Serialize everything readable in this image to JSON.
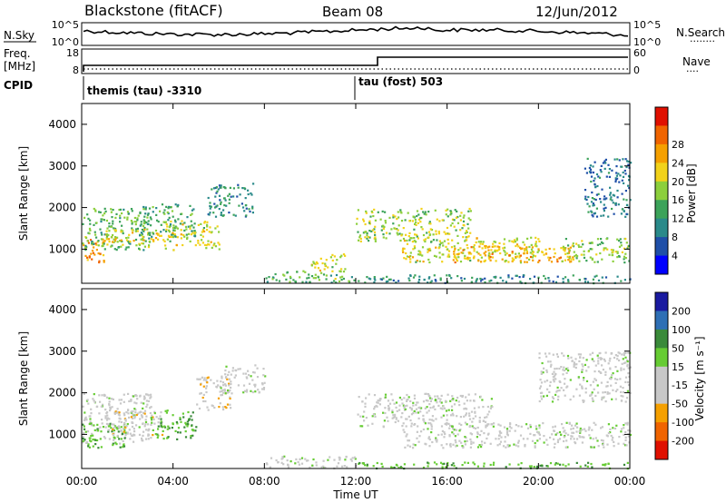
{
  "header": {
    "title": "Blackstone (fitACF)",
    "beam": "Beam 08",
    "date": "12/Jun/2012"
  },
  "strip_labels": {
    "nsky": "N.Sky",
    "nsearch": "N.Search",
    "freq_l1": "Freq.",
    "freq_l2": "[MHz]",
    "cpid": "CPID",
    "nave": "Nave",
    "sky_top": "10^5",
    "sky_bot": "10^0",
    "freq_top": "18",
    "freq_bot": "8",
    "nave_top": "60",
    "nave_bot": "0",
    "search_dots": "········",
    "nave_dots": "····"
  },
  "cpid_marks": {
    "first": "themis (tau) -3310",
    "second": "tau (fost) 503"
  },
  "colors": {
    "power": [
      "#0000ff",
      "#1f4fa8",
      "#2a8a8a",
      "#3ca35a",
      "#8ccf3c",
      "#f2d21a",
      "#f5a000",
      "#f06400",
      "#e01000"
    ],
    "velocity": [
      "#1a1aa0",
      "#2e6fb5",
      "#3a8a3a",
      "#66cc33",
      "#c8c8c8",
      "#c8c8c8",
      "#f5a000",
      "#f06400",
      "#e01000"
    ],
    "ground_scatter": "#c0c0c0"
  },
  "chart_data": [
    {
      "type": "heatmap",
      "panel": "power",
      "ylabel": "Slant Range [km]",
      "yticks": [
        "1000",
        "2000",
        "3000",
        "4000"
      ],
      "ylim": [
        180,
        4500
      ],
      "colorbar_label": "Power [dB]",
      "colorbar_ticks": [
        "4",
        "8",
        "12",
        "16",
        "20",
        "24",
        "28"
      ],
      "colorbar_range": [
        0,
        32
      ],
      "regions": [
        {
          "t0": 0.0,
          "t1": 1.0,
          "r0": 700,
          "r1": 1400,
          "value": 24
        },
        {
          "t0": 0.0,
          "t1": 3.0,
          "r0": 1000,
          "r1": 2000,
          "value": 14
        },
        {
          "t0": 1.0,
          "t1": 3.5,
          "r0": 1100,
          "r1": 1500,
          "value": 20
        },
        {
          "t0": 2.5,
          "t1": 5.0,
          "r0": 1300,
          "r1": 2100,
          "value": 12
        },
        {
          "t0": 3.5,
          "t1": 6.0,
          "r0": 1000,
          "r1": 1700,
          "value": 18
        },
        {
          "t0": 5.5,
          "t1": 7.5,
          "r0": 1800,
          "r1": 2600,
          "value": 10
        },
        {
          "t0": 8.0,
          "t1": 12.0,
          "r0": 200,
          "r1": 500,
          "value": 14
        },
        {
          "t0": 10.0,
          "t1": 11.5,
          "r0": 500,
          "r1": 900,
          "value": 18
        },
        {
          "t0": 12.0,
          "t1": 17.0,
          "r0": 1200,
          "r1": 2000,
          "value": 16
        },
        {
          "t0": 14.0,
          "t1": 20.0,
          "r0": 700,
          "r1": 1300,
          "value": 18
        },
        {
          "t0": 16.0,
          "t1": 21.5,
          "r0": 700,
          "r1": 1100,
          "value": 22
        },
        {
          "t0": 21.0,
          "t1": 24.0,
          "r0": 700,
          "r1": 1300,
          "value": 16
        },
        {
          "t0": 22.0,
          "t1": 24.0,
          "r0": 1800,
          "r1": 3200,
          "value": 8
        },
        {
          "t0": 12.0,
          "t1": 24.0,
          "r0": 200,
          "r1": 400,
          "value": 10
        }
      ]
    },
    {
      "type": "heatmap",
      "panel": "velocity",
      "xlabel": "Time UT",
      "ylabel": "Slant Range [km]",
      "xticks": [
        "00:00",
        "04:00",
        "08:00",
        "12:00",
        "16:00",
        "20:00",
        "00:00"
      ],
      "yticks": [
        "1000",
        "2000",
        "3000",
        "4000"
      ],
      "ylim": [
        180,
        4500
      ],
      "xlim": [
        0,
        24
      ],
      "colorbar_label": "Velocity [m s⁻¹]",
      "colorbar_ticks": [
        "200",
        "100",
        "50",
        "15",
        "-15",
        "-50",
        "-100",
        "-200"
      ],
      "colorbar_range": [
        -250,
        250
      ],
      "regions": [
        {
          "t0": 0.0,
          "t1": 3.0,
          "r0": 800,
          "r1": 2000,
          "value": 0
        },
        {
          "t0": 0.0,
          "t1": 2.0,
          "r0": 700,
          "r1": 1300,
          "value": 70
        },
        {
          "t0": 1.0,
          "t1": 3.5,
          "r0": 1000,
          "r1": 1600,
          "value": -60
        },
        {
          "t0": 3.0,
          "t1": 5.0,
          "r0": 900,
          "r1": 1600,
          "value": 80
        },
        {
          "t0": 5.0,
          "t1": 6.5,
          "r0": 1600,
          "r1": 2400,
          "value": -60
        },
        {
          "t0": 6.0,
          "t1": 8.0,
          "r0": 2000,
          "r1": 2700,
          "value": 0
        },
        {
          "t0": 8.0,
          "t1": 12.0,
          "r0": 200,
          "r1": 500,
          "value": 0
        },
        {
          "t0": 12.0,
          "t1": 24.0,
          "r0": 200,
          "r1": 350,
          "value": 70
        },
        {
          "t0": 12.0,
          "t1": 18.0,
          "r0": 1200,
          "r1": 2000,
          "value": 0
        },
        {
          "t0": 14.0,
          "t1": 24.0,
          "r0": 700,
          "r1": 1300,
          "value": 0
        },
        {
          "t0": 20.0,
          "t1": 24.0,
          "r0": 1800,
          "r1": 3000,
          "value": 0
        }
      ]
    }
  ]
}
